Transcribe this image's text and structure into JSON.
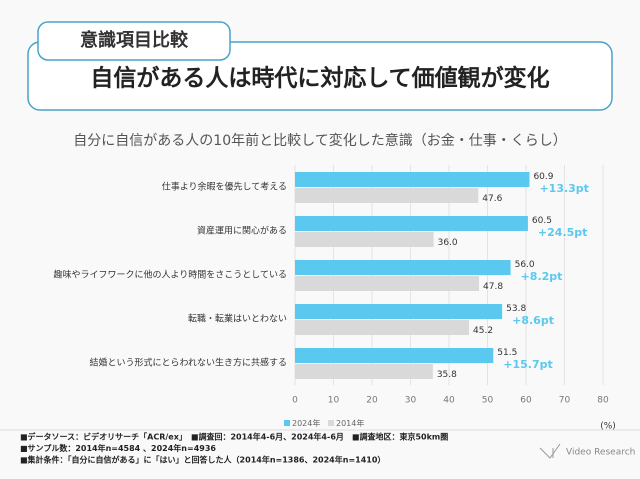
{
  "chart_data": {
    "type": "hbar",
    "tag": "意識項目比較",
    "title": "自信がある人は時代に対応して価値観が変化",
    "subtitle": "自分に自信がある人の10年前と比較して変化した意識（お金・仕事・くらし）",
    "categories": [
      "仕事より余暇を優先して考える",
      "資産運用に関心がある",
      "趣味やライフワークに他の人より時間をさこうとしている",
      "転職・転業はいとわない",
      "結婚という形式にとらわれない生き方に共感する"
    ],
    "series": [
      {
        "name": "2024年",
        "color": "#5bc8ef",
        "values": [
          60.9,
          60.5,
          56.0,
          53.8,
          51.5
        ],
        "value_labels": [
          "60.9",
          "60.5",
          "56.0",
          "53.8",
          "51.5"
        ]
      },
      {
        "name": "2014年",
        "color": "#d9d9d9",
        "values": [
          47.6,
          36.0,
          47.8,
          45.2,
          35.8
        ],
        "value_labels": [
          "47.6",
          "36.0",
          "47.8",
          "45.2",
          "35.8"
        ]
      }
    ],
    "annotations": [
      "+13.3pt",
      "+24.5pt",
      "+8.2pt",
      "+8.6pt",
      "+15.7pt"
    ],
    "annotation_color": "#5bc8ef",
    "xlim": [
      0,
      80
    ],
    "xticks": [
      0,
      10,
      20,
      30,
      40,
      50,
      60,
      70,
      80
    ],
    "grid": true,
    "unit": "(%)",
    "notes": [
      "■データソース：ビデオリサーチ「ACR/ex」　■調査回：2014年4-6月、2024年4-6月　■調査地区：東京50km圏",
      "■サンプル数：2014年n=4584 、2024年n=4936",
      "■集計条件：「自分に自信がある」に「はい」と回答した人（2014年n=1386、2024年n=1410）"
    ],
    "brand": "Video Research"
  }
}
